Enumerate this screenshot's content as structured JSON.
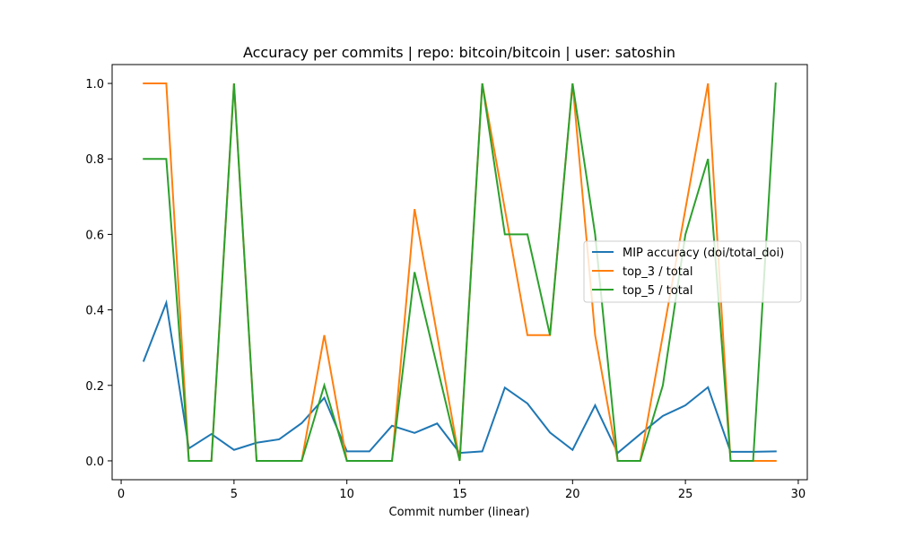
{
  "chart_data": {
    "type": "line",
    "title": "Accuracy per commits | repo: bitcoin/bitcoin | user: satoshin",
    "xlabel": "Commit number (linear)",
    "ylabel": "",
    "xlim": [
      -0.4,
      30.4
    ],
    "ylim": [
      -0.05,
      1.05
    ],
    "xticks": [
      0,
      5,
      10,
      15,
      20,
      25,
      30
    ],
    "yticks": [
      0.0,
      0.2,
      0.4,
      0.6,
      0.8,
      1.0
    ],
    "xtick_labels": [
      "0",
      "5",
      "10",
      "15",
      "20",
      "25",
      "30"
    ],
    "ytick_labels": [
      "0.0",
      "0.2",
      "0.4",
      "0.6",
      "0.8",
      "1.0"
    ],
    "grid": false,
    "legend_placement": "center-right",
    "x": [
      1,
      2,
      3,
      4,
      5,
      6,
      7,
      8,
      9,
      10,
      11,
      12,
      13,
      14,
      15,
      16,
      17,
      18,
      19,
      20,
      21,
      22,
      23,
      24,
      25,
      26,
      27,
      28,
      29
    ],
    "series": [
      {
        "name": "MIP accuracy (doi/total_doi)",
        "color": "#1f77b4",
        "values": [
          0.265,
          0.419,
          0.033,
          0.071,
          0.029,
          0.048,
          0.057,
          0.1,
          0.167,
          0.025,
          0.025,
          0.093,
          0.074,
          0.099,
          0.021,
          0.025,
          0.194,
          0.152,
          0.075,
          0.029,
          0.147,
          0.021,
          0.071,
          0.119,
          0.147,
          0.195,
          0.024,
          0.024,
          0.025
        ]
      },
      {
        "name": "top_3 / total",
        "color": "#ff7f0e",
        "values": [
          1.0,
          1.0,
          0.0,
          0.0,
          1.0,
          0.0,
          0.0,
          0.0,
          0.333,
          0.0,
          0.0,
          0.0,
          0.667,
          0.333,
          0.0,
          1.0,
          0.667,
          0.333,
          0.333,
          1.0,
          0.333,
          0.0,
          0.0,
          0.333,
          0.667,
          1.0,
          0.0,
          0.0,
          0.0
        ]
      },
      {
        "name": "top_5 / total",
        "color": "#2ca02c",
        "values": [
          0.8,
          0.8,
          0.0,
          0.0,
          1.0,
          0.0,
          0.0,
          0.0,
          0.2,
          0.0,
          0.0,
          0.0,
          0.5,
          0.25,
          0.0,
          1.0,
          0.6,
          0.6,
          0.333,
          1.0,
          0.6,
          0.0,
          0.0,
          0.2,
          0.6,
          0.8,
          0.0,
          0.0,
          1.0
        ]
      }
    ]
  }
}
